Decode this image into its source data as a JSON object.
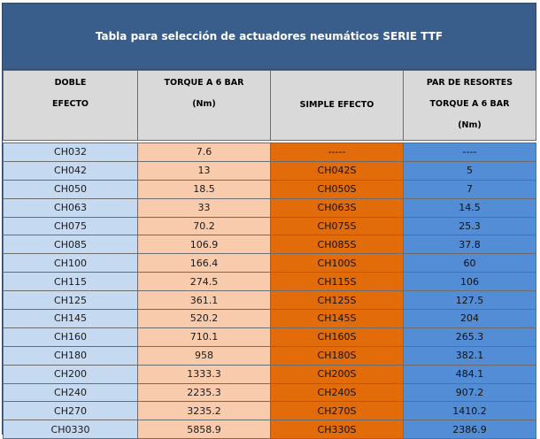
{
  "title": "Tabla para selección de actuadores neumáticos  SERIE TTF",
  "headers": {
    "col1_line1": "DOBLE",
    "col1_line2": "EFECTO",
    "col2_line1": "TORQUE A 6 BAR",
    "col2_line2": "(Nm)",
    "col3": "SIMPLE EFECTO",
    "col4_line1": "PAR DE RESORTES",
    "col4_line2": "TORQUE A 6 BAR",
    "col4_line3": "(Nm)"
  },
  "rows": [
    {
      "doble": "CH032",
      "torque": "7.6",
      "simple": "-----",
      "resortes": "----"
    },
    {
      "doble": "CH042",
      "torque": "13",
      "simple": "CH042S",
      "resortes": "5"
    },
    {
      "doble": "CH050",
      "torque": "18.5",
      "simple": "CH050S",
      "resortes": "7"
    },
    {
      "doble": "CH063",
      "torque": "33",
      "simple": "CH063S",
      "resortes": "14.5"
    },
    {
      "doble": "CH075",
      "torque": "70.2",
      "simple": "CH075S",
      "resortes": "25.3"
    },
    {
      "doble": "CH085",
      "torque": "106.9",
      "simple": "CH085S",
      "resortes": "37.8"
    },
    {
      "doble": "CH100",
      "torque": "166.4",
      "simple": "CH100S",
      "resortes": "60"
    },
    {
      "doble": "CH115",
      "torque": "274.5",
      "simple": "CH115S",
      "resortes": "106"
    },
    {
      "doble": "CH125",
      "torque": "361.1",
      "simple": "CH125S",
      "resortes": "127.5"
    },
    {
      "doble": "CH145",
      "torque": "520.2",
      "simple": "CH145S",
      "resortes": "204"
    },
    {
      "doble": "CH160",
      "torque": "710.1",
      "simple": "CH160S",
      "resortes": "265.3"
    },
    {
      "doble": "CH180",
      "torque": "958",
      "simple": "CH180S",
      "resortes": "382.1"
    },
    {
      "doble": "CH200",
      "torque": "1333.3",
      "simple": "CH200S",
      "resortes": "484.1"
    },
    {
      "doble": "CH240",
      "torque": "2235.3",
      "simple": "CH240S",
      "resortes": "907.2"
    },
    {
      "doble": "CH270",
      "torque": "3235.2",
      "simple": "CH270S",
      "resortes": "1410.2"
    },
    {
      "doble": "CH0330",
      "torque": "5858.9",
      "simple": "CH330S",
      "resortes": "2386.9"
    }
  ],
  "colors": {
    "title_bg": "#3a5e8c",
    "header_bg": "#d9d9d9",
    "col_doble": "#c5d9f1",
    "col_torque": "#f8cbad",
    "col_simple": "#e26b0a",
    "col_resortes": "#538dd5"
  }
}
